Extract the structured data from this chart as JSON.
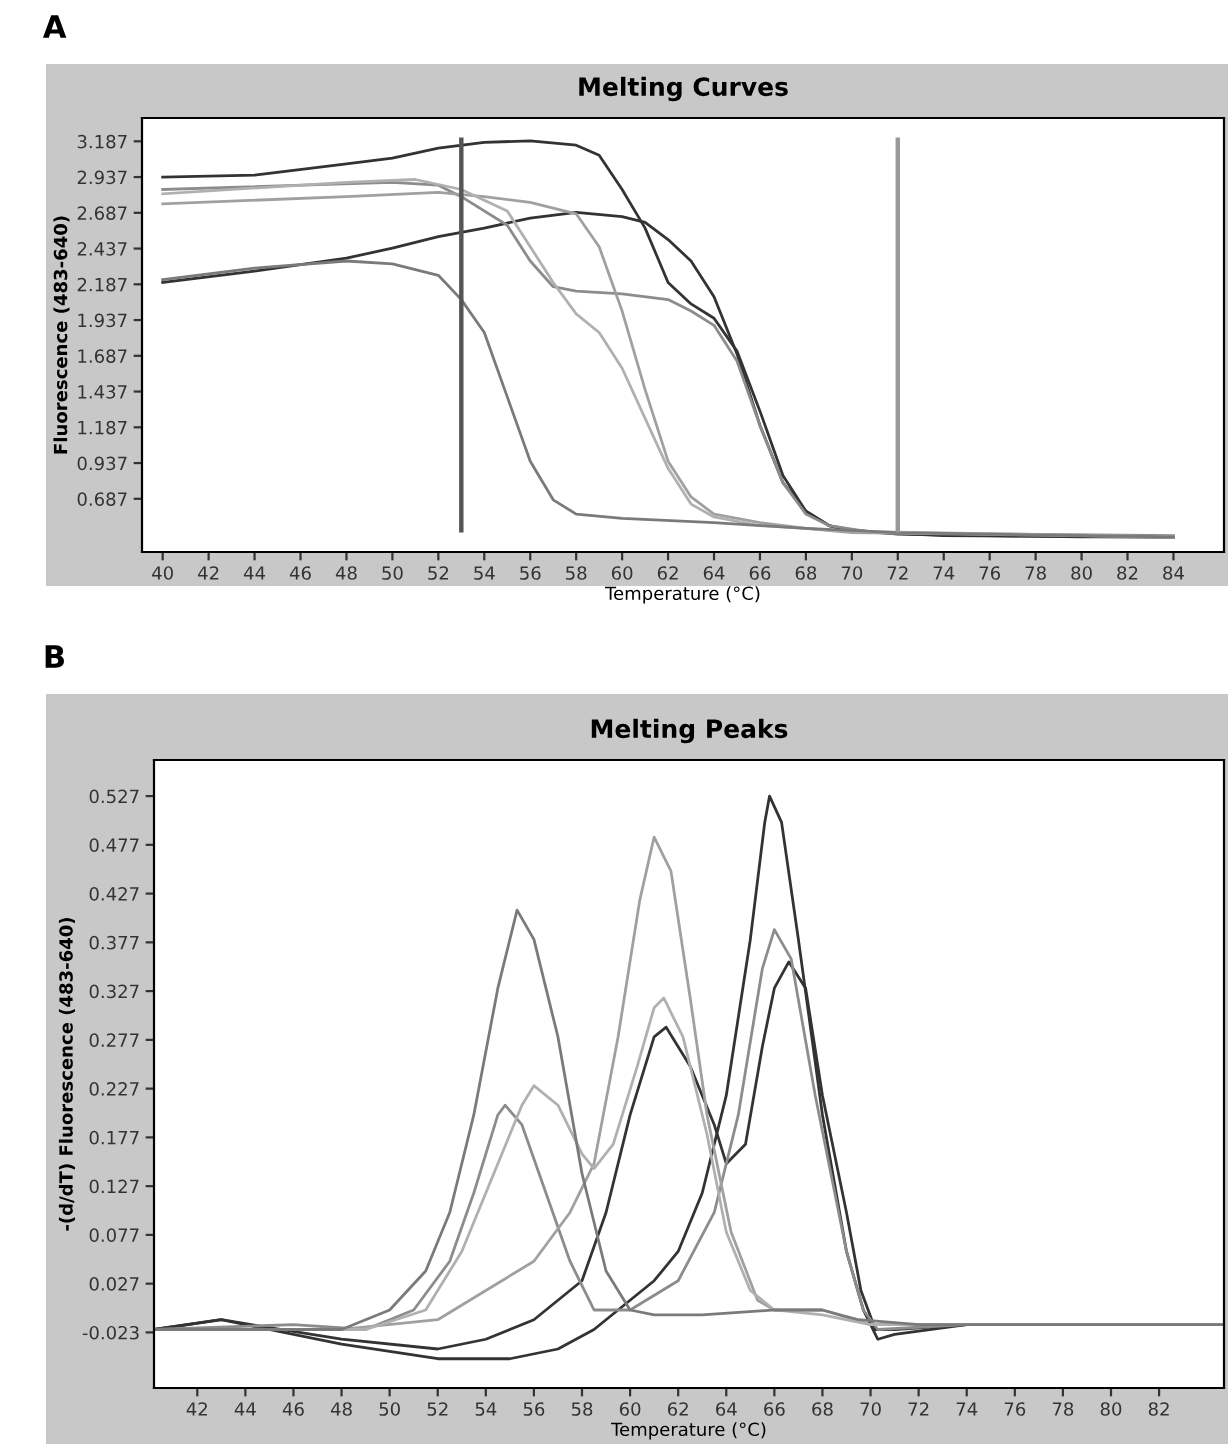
{
  "chart_data": [
    {
      "type": "line",
      "title": "Melting Curves",
      "xlabel": "Temperature (°C)",
      "ylabel": "Fluorescence (483-640)",
      "annotations": [
        "A"
      ],
      "xlim": [
        39.1,
        86.2
      ],
      "ylim": [
        0.315,
        3.35
      ],
      "xticks": [
        40,
        42,
        44,
        46,
        48,
        50,
        52,
        54,
        56,
        58,
        60,
        62,
        64,
        66,
        68,
        70,
        72,
        74,
        76,
        78,
        80,
        82,
        84
      ],
      "yticks": [
        0.687,
        0.937,
        1.187,
        1.437,
        1.687,
        1.937,
        2.187,
        2.437,
        2.687,
        2.937,
        3.187
      ],
      "ref_lines": [
        {
          "axis": "x",
          "value": 53,
          "color": "#555555"
        },
        {
          "axis": "x",
          "value": 72,
          "color": "#999999"
        }
      ],
      "series": [
        {
          "color": "#333333",
          "x": [
            40,
            44,
            48,
            50,
            52,
            54,
            56,
            58,
            59,
            60,
            61,
            62,
            63,
            64,
            65,
            66,
            67,
            68,
            69,
            70,
            72,
            76,
            80,
            84
          ],
          "values": [
            2.937,
            2.95,
            3.03,
            3.07,
            3.14,
            3.18,
            3.19,
            3.16,
            3.09,
            2.85,
            2.58,
            2.2,
            2.05,
            1.95,
            1.72,
            1.3,
            0.85,
            0.6,
            0.5,
            0.47,
            0.44,
            0.43,
            0.42,
            0.42
          ]
        },
        {
          "color": "#333333",
          "x": [
            40,
            44,
            48,
            50,
            52,
            54,
            56,
            58,
            60,
            61,
            62,
            63,
            64,
            65,
            66,
            67,
            68,
            69,
            70,
            74,
            84
          ],
          "values": [
            2.2,
            2.28,
            2.37,
            2.44,
            2.52,
            2.58,
            2.65,
            2.69,
            2.66,
            2.62,
            2.5,
            2.35,
            2.1,
            1.7,
            1.2,
            0.8,
            0.6,
            0.5,
            0.46,
            0.43,
            0.42
          ]
        },
        {
          "color": "#8c8c8c",
          "x": [
            40,
            50,
            52,
            53,
            55,
            56,
            57,
            58,
            60,
            62,
            63,
            64,
            65,
            66,
            67,
            68,
            69,
            71,
            84
          ],
          "values": [
            2.85,
            2.9,
            2.88,
            2.8,
            2.6,
            2.35,
            2.17,
            2.14,
            2.12,
            2.08,
            2.0,
            1.9,
            1.65,
            1.2,
            0.8,
            0.58,
            0.5,
            0.45,
            0.43
          ]
        },
        {
          "color": "#a0a0a0",
          "x": [
            40,
            48,
            52,
            54,
            56,
            58,
            59,
            60,
            61,
            62,
            63,
            64,
            66,
            68,
            70,
            84
          ],
          "values": [
            2.75,
            2.8,
            2.83,
            2.8,
            2.76,
            2.68,
            2.45,
            2.0,
            1.45,
            0.95,
            0.7,
            0.58,
            0.52,
            0.48,
            0.45,
            0.42
          ]
        },
        {
          "color": "#b0b0b0",
          "x": [
            40,
            48,
            51,
            53,
            55,
            56,
            57,
            58,
            59,
            60,
            61,
            62,
            63,
            64,
            66,
            70,
            84
          ],
          "values": [
            2.82,
            2.9,
            2.92,
            2.85,
            2.7,
            2.45,
            2.2,
            1.98,
            1.85,
            1.6,
            1.25,
            0.9,
            0.65,
            0.56,
            0.5,
            0.46,
            0.42
          ]
        },
        {
          "color": "#7a7a7a",
          "x": [
            40,
            44,
            48,
            50,
            52,
            53,
            54,
            55,
            56,
            57,
            58,
            60,
            64,
            68,
            72,
            84
          ],
          "values": [
            2.22,
            2.3,
            2.35,
            2.33,
            2.25,
            2.08,
            1.85,
            1.4,
            0.95,
            0.68,
            0.58,
            0.55,
            0.52,
            0.48,
            0.45,
            0.42
          ]
        }
      ]
    },
    {
      "type": "line",
      "title": "Melting Peaks",
      "xlabel": "Temperature (°C)",
      "ylabel": "-(d/dT) Fluorescence (483-640)",
      "annotations": [
        "B"
      ],
      "xlim": [
        40.2,
        84.7
      ],
      "ylim": [
        -0.08,
        0.564
      ],
      "xticks": [
        42,
        44,
        46,
        48,
        50,
        52,
        54,
        56,
        58,
        60,
        62,
        64,
        66,
        68,
        70,
        72,
        74,
        76,
        78,
        80,
        82
      ],
      "yticks": [
        -0.023,
        0.027,
        0.077,
        0.127,
        0.177,
        0.227,
        0.277,
        0.327,
        0.377,
        0.427,
        0.477,
        0.527
      ],
      "series": [
        {
          "color": "#333333",
          "x": [
            40.2,
            43,
            48,
            52,
            54,
            56,
            58,
            59,
            60,
            61,
            61.5,
            62.5,
            63.5,
            64,
            64.8,
            65.5,
            66,
            66.6,
            67.3,
            68,
            69,
            69.6,
            70.2,
            71,
            74,
            84.7
          ],
          "values": [
            -0.02,
            -0.01,
            -0.03,
            -0.04,
            -0.03,
            -0.01,
            0.03,
            0.1,
            0.2,
            0.28,
            0.29,
            0.25,
            0.19,
            0.15,
            0.17,
            0.27,
            0.33,
            0.357,
            0.33,
            0.22,
            0.1,
            0.02,
            -0.02,
            -0.02,
            -0.015,
            -0.015
          ]
        },
        {
          "color": "#333333",
          "x": [
            40.2,
            43,
            48,
            52,
            55,
            57,
            58.5,
            59.5,
            61,
            62,
            63,
            64,
            65,
            65.6,
            65.8,
            66.3,
            67,
            68,
            69,
            69.7,
            70.3,
            71,
            74,
            84.7
          ],
          "values": [
            -0.02,
            -0.01,
            -0.035,
            -0.05,
            -0.05,
            -0.04,
            -0.02,
            0.0,
            0.03,
            0.06,
            0.12,
            0.22,
            0.38,
            0.5,
            0.527,
            0.5,
            0.38,
            0.2,
            0.06,
            0.0,
            -0.03,
            -0.025,
            -0.015,
            -0.015
          ]
        },
        {
          "color": "#8c8c8c",
          "x": [
            40.2,
            46,
            49,
            51,
            52.5,
            53.5,
            54.5,
            54.8,
            55.5,
            56.5,
            57.5,
            58.5,
            60,
            62,
            63.5,
            64.5,
            65.5,
            66,
            66.7,
            67.7,
            69,
            69.7,
            70.3,
            74,
            84.7
          ],
          "values": [
            -0.02,
            -0.015,
            -0.02,
            0.0,
            0.05,
            0.12,
            0.2,
            0.21,
            0.19,
            0.12,
            0.05,
            0.0,
            0.0,
            0.03,
            0.1,
            0.2,
            0.35,
            0.39,
            0.36,
            0.22,
            0.06,
            0.0,
            -0.02,
            -0.015,
            -0.015
          ]
        },
        {
          "color": "#a0a0a0",
          "x": [
            40.2,
            48,
            52,
            54,
            56,
            57.5,
            58.5,
            59.5,
            60.4,
            61,
            61.7,
            62.5,
            63.2,
            64.2,
            65.3,
            66,
            68,
            70,
            84.7
          ],
          "values": [
            -0.02,
            -0.02,
            -0.01,
            0.02,
            0.05,
            0.1,
            0.15,
            0.28,
            0.42,
            0.485,
            0.45,
            0.32,
            0.2,
            0.08,
            0.01,
            0.0,
            0.0,
            -0.015,
            -0.015
          ]
        },
        {
          "color": "#b0b0b0",
          "x": [
            40.2,
            49,
            51.5,
            53,
            54.5,
            55.5,
            56,
            57,
            58,
            58.5,
            59.3,
            60.3,
            61,
            61.4,
            62.2,
            63.2,
            64,
            65,
            66,
            68,
            70,
            84.7
          ],
          "values": [
            -0.02,
            -0.02,
            0.0,
            0.06,
            0.15,
            0.21,
            0.23,
            0.21,
            0.16,
            0.145,
            0.17,
            0.25,
            0.31,
            0.32,
            0.28,
            0.18,
            0.08,
            0.02,
            0.0,
            -0.005,
            -0.015,
            -0.015
          ]
        },
        {
          "color": "#7a7a7a",
          "x": [
            40.2,
            48,
            50,
            51.5,
            52.5,
            53.5,
            54.5,
            55.3,
            56,
            57,
            58,
            59,
            60,
            61,
            63,
            66,
            68,
            69.5,
            72,
            84.7
          ],
          "values": [
            -0.02,
            -0.02,
            0.0,
            0.04,
            0.1,
            0.2,
            0.33,
            0.41,
            0.38,
            0.28,
            0.14,
            0.04,
            0.0,
            -0.005,
            -0.005,
            0.0,
            0.0,
            -0.01,
            -0.015,
            -0.015
          ]
        }
      ]
    }
  ]
}
